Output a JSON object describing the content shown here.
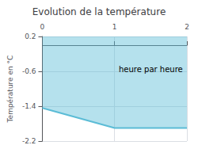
{
  "chart_data": {
    "type": "area",
    "title": "Evolution de la température",
    "ylabel": "Température en °C",
    "x": [
      0,
      1.0,
      2.0
    ],
    "values": [
      -1.44,
      -1.9,
      -1.9
    ],
    "color": "#5bbcd6",
    "xlim": [
      0,
      2
    ],
    "ylim": [
      -2.2,
      0.2
    ],
    "xticks": [
      0,
      1,
      2
    ],
    "yticks": [
      0.2,
      -0.6,
      -1.4,
      -2.2
    ],
    "grid": true,
    "annotations": [
      {
        "text": "heure par heure",
        "x": 1.5,
        "y": -0.55
      }
    ]
  }
}
